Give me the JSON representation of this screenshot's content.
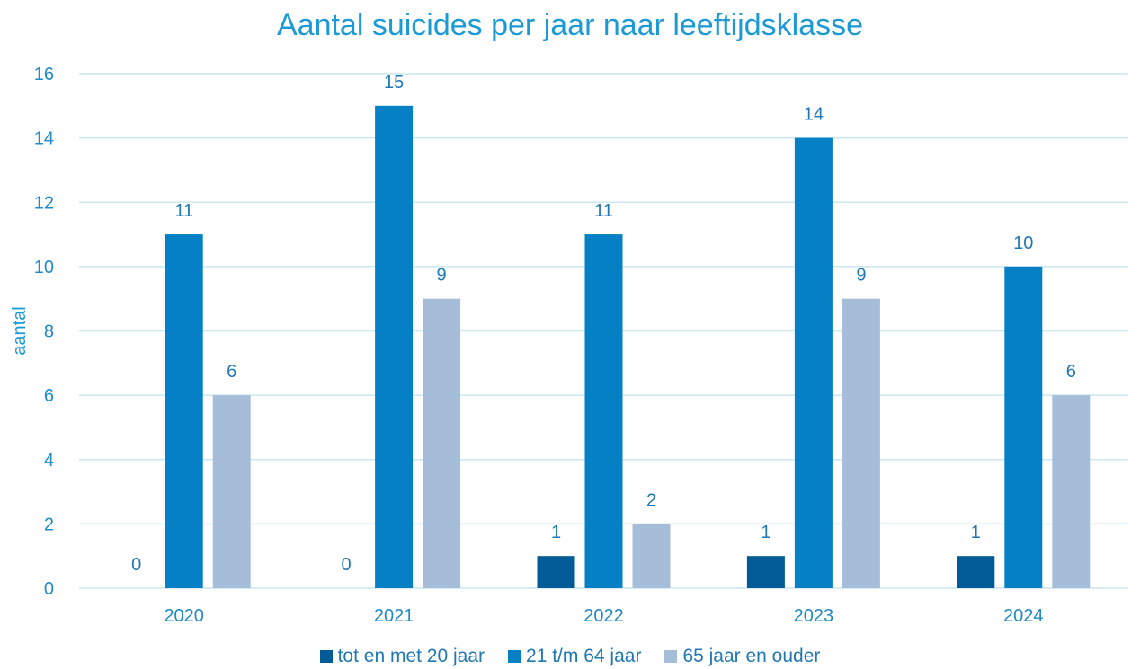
{
  "chart_data": {
    "type": "bar",
    "title": "Aantal suicides per jaar naar leeftijdsklasse",
    "xlabel": "",
    "ylabel": "aantal",
    "categories": [
      "2020",
      "2021",
      "2022",
      "2023",
      "2024"
    ],
    "ylim": [
      0,
      16
    ],
    "yticks": [
      "0",
      "2",
      "4",
      "6",
      "8",
      "10",
      "12",
      "14",
      "16"
    ],
    "grid": true,
    "legend_position": "bottom",
    "series": [
      {
        "name": "tot en met 20 jaar",
        "values": [
          0,
          0,
          1,
          1,
          1
        ],
        "color": "#005b96"
      },
      {
        "name": "21 t/m 64 jaar",
        "values": [
          11,
          15,
          11,
          14,
          10
        ],
        "color": "#0580c5"
      },
      {
        "name": "65 jaar en ouder",
        "values": [
          6,
          9,
          2,
          9,
          6
        ],
        "color": "#a5bdd8"
      }
    ],
    "colors": {
      "title": "#1b9ad6",
      "axis_text": "#1f8ac9",
      "label_text": "#1f77b4",
      "grid": "#cce6f2"
    }
  }
}
